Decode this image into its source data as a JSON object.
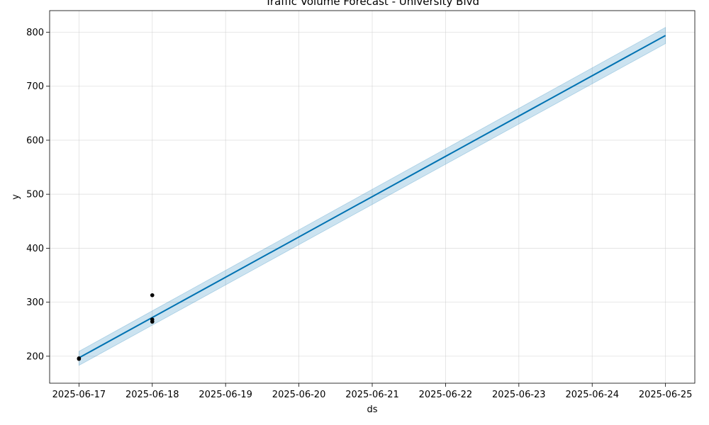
{
  "chart_data": {
    "type": "line",
    "title": "Traffic Volume Forecast - University Blvd",
    "xlabel": "ds",
    "ylabel": "y",
    "x_ticks": [
      "2025-06-17",
      "2025-06-18",
      "2025-06-19",
      "2025-06-20",
      "2025-06-21",
      "2025-06-22",
      "2025-06-23",
      "2025-06-24",
      "2025-06-25"
    ],
    "y_ticks": [
      200,
      300,
      400,
      500,
      600,
      700,
      800
    ],
    "xlim": [
      "2025-06-16T14:24",
      "2025-06-25T09:36"
    ],
    "ylim": [
      150,
      840
    ],
    "grid": true,
    "series": [
      {
        "kind": "forecast",
        "color": "#0072B2",
        "x": [
          "2025-06-17",
          "2025-06-25"
        ],
        "y": [
          197,
          794
        ]
      },
      {
        "kind": "uncertainty",
        "color": "#0072B2",
        "opacity": 0.2,
        "x": [
          "2025-06-17",
          "2025-06-25"
        ],
        "lower": [
          183,
          779
        ],
        "upper": [
          209,
          809
        ]
      },
      {
        "kind": "observed",
        "color": "#000000",
        "points": [
          {
            "x": "2025-06-17",
            "y": 196
          },
          {
            "x": "2025-06-17",
            "y": 195
          },
          {
            "x": "2025-06-18",
            "y": 313
          },
          {
            "x": "2025-06-18",
            "y": 268
          },
          {
            "x": "2025-06-18",
            "y": 264
          }
        ]
      }
    ]
  }
}
